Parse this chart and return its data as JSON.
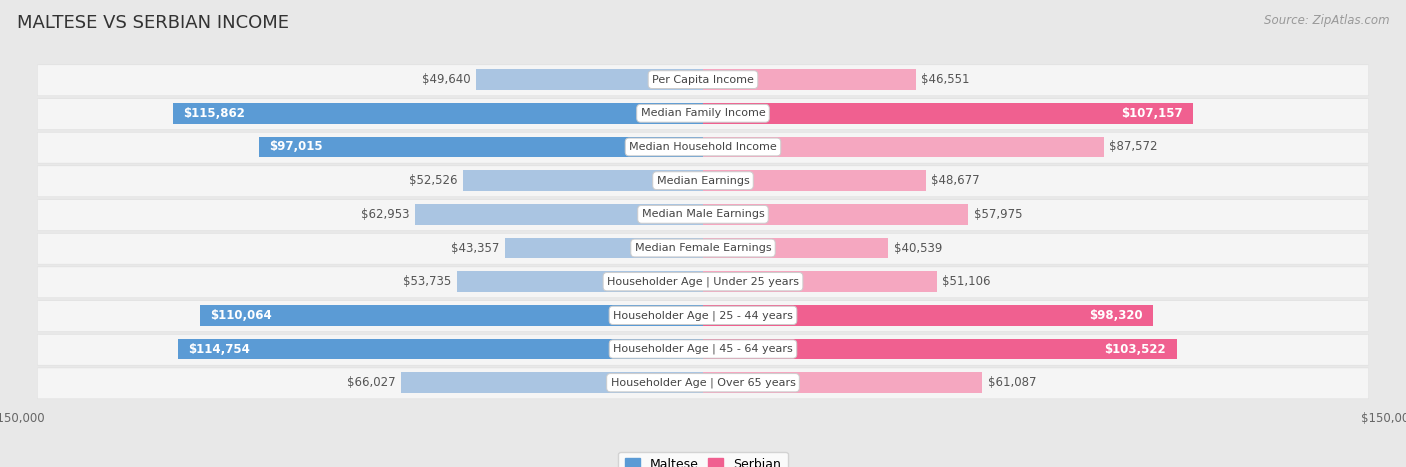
{
  "title": "MALTESE VS SERBIAN INCOME",
  "source": "Source: ZipAtlas.com",
  "categories": [
    "Per Capita Income",
    "Median Family Income",
    "Median Household Income",
    "Median Earnings",
    "Median Male Earnings",
    "Median Female Earnings",
    "Householder Age | Under 25 years",
    "Householder Age | 25 - 44 years",
    "Householder Age | 45 - 64 years",
    "Householder Age | Over 65 years"
  ],
  "maltese_values": [
    49640,
    115862,
    97015,
    52526,
    62953,
    43357,
    53735,
    110064,
    114754,
    66027
  ],
  "serbian_values": [
    46551,
    107157,
    87572,
    48677,
    57975,
    40539,
    51106,
    98320,
    103522,
    61087
  ],
  "maltese_labels": [
    "$49,640",
    "$115,862",
    "$97,015",
    "$52,526",
    "$62,953",
    "$43,357",
    "$53,735",
    "$110,064",
    "$114,754",
    "$66,027"
  ],
  "serbian_labels": [
    "$46,551",
    "$107,157",
    "$87,572",
    "$48,677",
    "$57,975",
    "$40,539",
    "$51,106",
    "$98,320",
    "$103,522",
    "$61,087"
  ],
  "maltese_color_light": "#aac5e2",
  "maltese_color_strong": "#5b9bd5",
  "serbian_color_light": "#f5a7c0",
  "serbian_color_strong": "#f06090",
  "maltese_strong_flags": [
    false,
    true,
    true,
    false,
    false,
    false,
    false,
    true,
    true,
    false
  ],
  "serbian_strong_flags": [
    false,
    true,
    false,
    false,
    false,
    false,
    false,
    true,
    true,
    false
  ],
  "max_value": 150000,
  "background_color": "#e8e8e8",
  "row_bg_color": "#f5f5f5",
  "title_fontsize": 13,
  "source_fontsize": 8.5,
  "bar_label_fontsize": 8.5,
  "category_fontsize": 8,
  "axis_label_fontsize": 8.5,
  "legend_fontsize": 9,
  "bar_height": 0.62,
  "row_padding": 0.06
}
